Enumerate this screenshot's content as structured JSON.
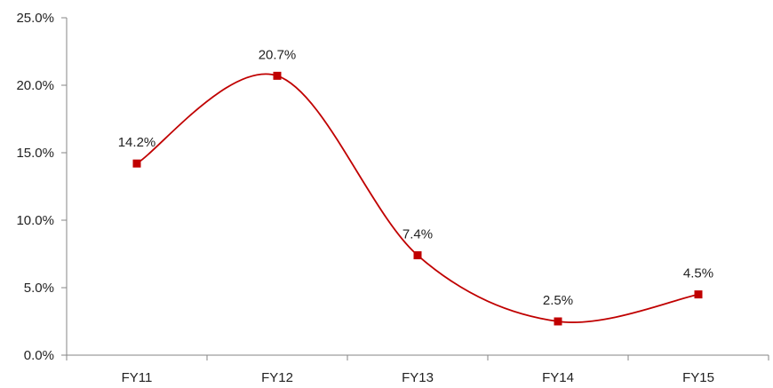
{
  "chart_data": {
    "type": "line",
    "title": "",
    "xlabel": "",
    "ylabel": "",
    "categories": [
      "FY11",
      "FY12",
      "FY13",
      "FY14",
      "FY15"
    ],
    "values": [
      14.2,
      20.7,
      7.4,
      2.5,
      4.5
    ],
    "data_labels": [
      "14.2%",
      "20.7%",
      "7.4%",
      "2.5%",
      "4.5%"
    ],
    "ylim": [
      0,
      25
    ],
    "yticks": [
      0,
      5,
      10,
      15,
      20,
      25
    ],
    "ytick_labels": [
      "0.0%",
      "5.0%",
      "10.0%",
      "15.0%",
      "20.0%",
      "25.0%"
    ],
    "grid": false,
    "legend": "none",
    "line_smoothing": "smooth",
    "marker": "square",
    "colors": {
      "series": "#c00000",
      "axis": "#868686",
      "text": "#222222"
    }
  }
}
